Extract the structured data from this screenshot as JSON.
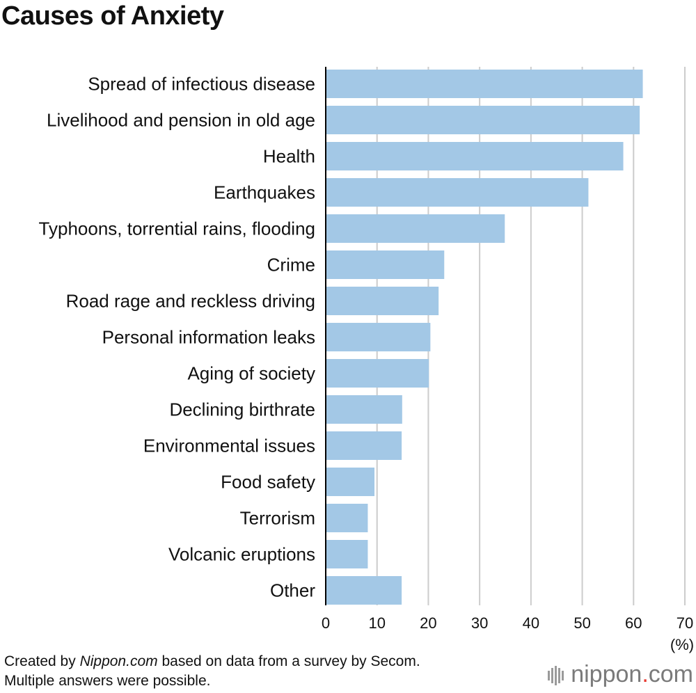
{
  "title": "Causes of Anxiety",
  "footnote": {
    "line1_prefix": "Created by ",
    "line1_source": "Nippon.com",
    "line1_suffix": " based on data from a survey by Secom.",
    "line2": "Multiple answers were possible."
  },
  "logo": {
    "name": "nippon",
    "dot": ".",
    "tld": "com"
  },
  "colors": {
    "bar": "#a3c8e6",
    "grid": "#cccccc",
    "axis": "#000000"
  },
  "chart_data": {
    "type": "bar",
    "orientation": "horizontal",
    "categories": [
      "Spread of infectious disease",
      "Livelihood and pension in old age",
      "Health",
      "Earthquakes",
      "Typhoons, torrential rains, flooding",
      "Crime",
      "Road rage and reckless driving",
      "Personal information leaks",
      "Aging of society",
      "Declining birthrate",
      "Environmental issues",
      "Food safety",
      "Terrorism",
      "Volcanic eruptions",
      "Other"
    ],
    "values": [
      61.8,
      61.2,
      58.0,
      51.2,
      34.9,
      23.1,
      22.0,
      20.4,
      20.1,
      14.9,
      14.8,
      9.5,
      8.2,
      8.2,
      14.8
    ],
    "xlim": [
      0,
      70
    ],
    "xticks": [
      0,
      10,
      20,
      30,
      40,
      50,
      60,
      70
    ],
    "xunit": "(%)",
    "grid": true
  }
}
